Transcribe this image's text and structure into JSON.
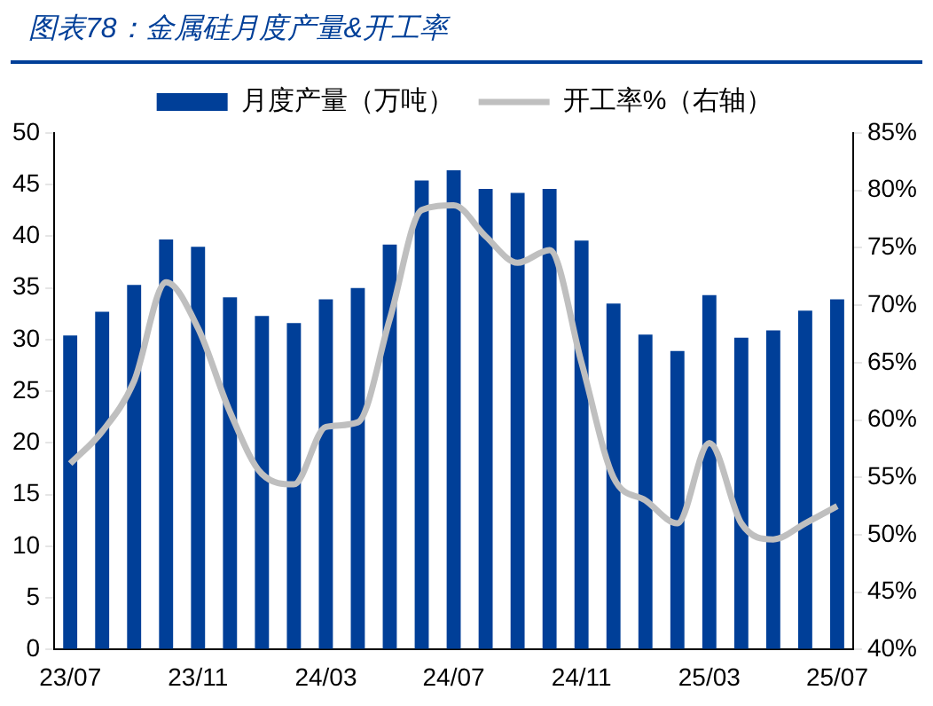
{
  "chart_data": {
    "type": "bar",
    "title": "图表78：金属硅月度产量&开工率",
    "categories": [
      "23/07",
      null,
      null,
      null,
      "23/11",
      null,
      null,
      null,
      "24/03",
      null,
      null,
      null,
      "24/07",
      null,
      null,
      null,
      "24/11",
      null,
      null,
      null,
      "25/03",
      null,
      null,
      null,
      "25/07"
    ],
    "series": [
      {
        "name": "月度产量（万吨）",
        "color": "#003f98",
        "values": [
          30.4,
          32.7,
          35.3,
          39.7,
          39.0,
          34.1,
          32.3,
          31.6,
          33.9,
          35.0,
          39.2,
          45.4,
          46.4,
          44.6,
          44.2,
          44.6,
          39.6,
          33.5,
          30.5,
          28.9,
          34.3,
          30.2,
          30.9,
          32.8,
          33.9
        ]
      },
      {
        "name": "开工率%（右轴）",
        "type": "line",
        "axis": "y2",
        "color": "#bfbfbf",
        "values": [
          56.2,
          59,
          63.4,
          72,
          68,
          60.7,
          55.3,
          54.4,
          59.4,
          59.8,
          68.8,
          78.3,
          78.7,
          76,
          73.7,
          74.8,
          65,
          55,
          53,
          51,
          58,
          51,
          49.6,
          51,
          52.5
        ]
      }
    ],
    "ylim": [
      0,
      50
    ],
    "yticks": [
      0,
      5,
      10,
      15,
      20,
      25,
      30,
      35,
      40,
      45,
      50
    ],
    "y2lim": [
      40,
      85
    ],
    "y2ticks": [
      {
        "value": 40,
        "label": "40%"
      },
      {
        "value": 45,
        "label": "45%"
      },
      {
        "value": 50,
        "label": "50%"
      },
      {
        "value": 55,
        "label": "55%"
      },
      {
        "value": 60,
        "label": "60%"
      },
      {
        "value": 65,
        "label": "65%"
      },
      {
        "value": 70,
        "label": "70%"
      },
      {
        "value": 75,
        "label": "75%"
      },
      {
        "value": 80,
        "label": "80%"
      },
      {
        "value": 85,
        "label": "85%"
      }
    ],
    "grid": false,
    "legend": "top",
    "marker": "none"
  }
}
